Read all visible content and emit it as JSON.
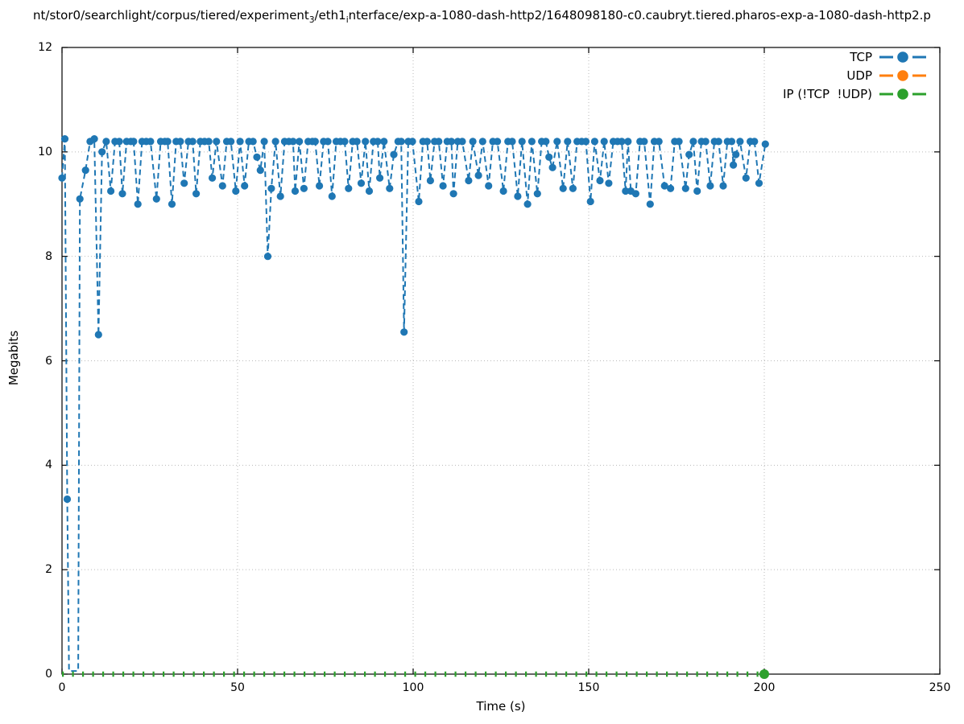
{
  "title": {
    "prefix": "nt/stor0/searchlight/corpus/tiered/experiment",
    "sub1": "3",
    "mid": "/eth1",
    "sub2": "i",
    "suffix": "nterface/exp-a-1080-dash-http2/1648098180-c0.caubryt.tiered.pharos-exp-a-1080-dash-http2.p"
  },
  "chart_data": {
    "type": "line",
    "xlabel": "Time (s)",
    "ylabel": "Megabits",
    "xlim": [
      0,
      250
    ],
    "ylim": [
      0,
      12
    ],
    "xticks": [
      0,
      50,
      100,
      150,
      200,
      250
    ],
    "yticks": [
      0,
      2,
      4,
      6,
      8,
      10,
      12
    ],
    "grid": true,
    "legend_position": "top-right-inside",
    "series": [
      {
        "name": "TCP",
        "color": "#1f77b4",
        "dash": "dashed",
        "marker": "circle",
        "marker_size": 4.6,
        "points": [
          [
            0,
            9.5
          ],
          [
            0.8,
            10.25
          ],
          [
            1.5,
            3.35
          ],
          [
            2,
            0.06,
            0
          ],
          [
            4.6,
            0.06,
            0
          ],
          [
            5.1,
            9.1
          ],
          [
            6.7,
            9.65
          ],
          [
            8,
            10.2
          ],
          [
            9.2,
            10.25
          ],
          [
            10.4,
            6.5
          ],
          [
            11.4,
            10.0
          ],
          [
            12.6,
            10.2
          ],
          [
            13.9,
            9.25
          ],
          [
            15.1,
            10.2
          ],
          [
            16.3,
            10.2
          ],
          [
            17.2,
            9.2
          ],
          [
            18.4,
            10.2
          ],
          [
            19.6,
            10.2
          ],
          [
            20.4,
            10.2
          ],
          [
            21.6,
            9.0
          ],
          [
            22.8,
            10.2
          ],
          [
            24,
            10.2
          ],
          [
            25.2,
            10.2
          ],
          [
            26.9,
            9.1
          ],
          [
            28.1,
            10.2
          ],
          [
            29.3,
            10.2
          ],
          [
            30.1,
            10.2
          ],
          [
            31.3,
            9.0
          ],
          [
            32.5,
            10.2
          ],
          [
            33.7,
            10.2
          ],
          [
            34.8,
            9.4
          ],
          [
            36,
            10.2
          ],
          [
            37.2,
            10.2
          ],
          [
            38.2,
            9.2
          ],
          [
            39.4,
            10.2
          ],
          [
            40.6,
            10.2
          ],
          [
            41.8,
            10.2
          ],
          [
            42.8,
            9.5
          ],
          [
            44,
            10.2
          ],
          [
            45.7,
            9.35
          ],
          [
            46.9,
            10.2
          ],
          [
            48.1,
            10.2
          ],
          [
            49.5,
            9.25
          ],
          [
            50.7,
            10.2
          ],
          [
            52,
            9.35
          ],
          [
            53.2,
            10.2
          ],
          [
            54.4,
            10.2
          ],
          [
            55.5,
            9.9
          ],
          [
            56.5,
            9.65
          ],
          [
            57.6,
            10.2
          ],
          [
            58.6,
            8.0
          ],
          [
            59.6,
            9.3
          ],
          [
            60.8,
            10.2
          ],
          [
            62.2,
            9.15
          ],
          [
            63.4,
            10.2
          ],
          [
            64.6,
            10.2
          ],
          [
            65.8,
            10.2
          ],
          [
            66.4,
            9.25
          ],
          [
            67.6,
            10.2
          ],
          [
            68.9,
            9.3
          ],
          [
            70.1,
            10.2
          ],
          [
            71.3,
            10.2
          ],
          [
            72.1,
            10.2
          ],
          [
            73.3,
            9.35
          ],
          [
            74.5,
            10.2
          ],
          [
            75.7,
            10.2
          ],
          [
            76.9,
            9.15
          ],
          [
            78.1,
            10.2
          ],
          [
            79.3,
            10.2
          ],
          [
            80.5,
            10.2
          ],
          [
            81.6,
            9.3
          ],
          [
            82.8,
            10.2
          ],
          [
            84,
            10.2
          ],
          [
            85.2,
            9.4
          ],
          [
            86.4,
            10.2
          ],
          [
            87.5,
            9.25
          ],
          [
            88.7,
            10.2
          ],
          [
            89.9,
            10.2
          ],
          [
            90.5,
            9.5
          ],
          [
            91.7,
            10.2
          ],
          [
            93.3,
            9.3
          ],
          [
            94.5,
            9.95
          ],
          [
            95.7,
            10.2
          ],
          [
            96.6,
            10.2
          ],
          [
            97.4,
            6.55
          ],
          [
            98.6,
            10.2
          ],
          [
            99.8,
            10.2
          ],
          [
            101.6,
            9.05
          ],
          [
            102.8,
            10.2
          ],
          [
            104,
            10.2
          ],
          [
            104.9,
            9.45
          ],
          [
            106.1,
            10.2
          ],
          [
            107.3,
            10.2
          ],
          [
            108.5,
            9.35
          ],
          [
            109.7,
            10.2
          ],
          [
            110.9,
            10.2
          ],
          [
            111.5,
            9.2
          ],
          [
            112.7,
            10.2
          ],
          [
            114,
            10.2
          ],
          [
            115.8,
            9.45
          ],
          [
            117,
            10.2
          ],
          [
            118.6,
            9.55
          ],
          [
            119.8,
            10.2
          ],
          [
            121.5,
            9.35
          ],
          [
            122.7,
            10.2
          ],
          [
            124,
            10.2
          ],
          [
            125.7,
            9.25
          ],
          [
            127,
            10.2
          ],
          [
            128.2,
            10.2
          ],
          [
            129.8,
            9.15
          ],
          [
            131,
            10.2
          ],
          [
            132.6,
            9.0
          ],
          [
            133.8,
            10.2
          ],
          [
            135.4,
            9.2
          ],
          [
            136.6,
            10.2
          ],
          [
            137.8,
            10.2
          ],
          [
            138.7,
            9.9
          ],
          [
            139.7,
            9.7
          ],
          [
            141,
            10.2
          ],
          [
            142.7,
            9.3
          ],
          [
            144,
            10.2
          ],
          [
            145.5,
            9.3
          ],
          [
            146.7,
            10.2
          ],
          [
            148,
            10.2
          ],
          [
            149.2,
            10.2
          ],
          [
            150.5,
            9.05
          ],
          [
            151.7,
            10.2
          ],
          [
            153.2,
            9.45
          ],
          [
            154.4,
            10.2
          ],
          [
            155.7,
            9.4
          ],
          [
            157,
            10.2
          ],
          [
            158.2,
            10.2
          ],
          [
            159.4,
            10.2
          ],
          [
            160.5,
            9.25
          ],
          [
            161.2,
            10.2
          ],
          [
            162,
            9.25
          ],
          [
            163.4,
            9.2
          ],
          [
            164.6,
            10.2
          ],
          [
            165.8,
            10.2
          ],
          [
            167.5,
            9.0
          ],
          [
            168.7,
            10.2
          ],
          [
            170,
            10.2
          ],
          [
            171.6,
            9.35
          ],
          [
            173.3,
            9.3
          ],
          [
            174.5,
            10.2
          ],
          [
            175.7,
            10.2
          ],
          [
            177.6,
            9.3
          ],
          [
            178.6,
            9.95
          ],
          [
            179.8,
            10.2
          ],
          [
            180.9,
            9.25
          ],
          [
            182.1,
            10.2
          ],
          [
            183.3,
            10.2
          ],
          [
            184.6,
            9.35
          ],
          [
            185.8,
            10.2
          ],
          [
            187,
            10.2
          ],
          [
            188.3,
            9.35
          ],
          [
            189.5,
            10.2
          ],
          [
            190.7,
            10.2
          ],
          [
            191.2,
            9.75
          ],
          [
            191.9,
            9.95
          ],
          [
            193.1,
            10.2
          ],
          [
            194.8,
            9.5
          ],
          [
            196,
            10.2
          ],
          [
            197.2,
            10.2
          ],
          [
            198.5,
            9.4
          ],
          [
            200.3,
            10.15
          ]
        ]
      },
      {
        "name": "UDP",
        "color": "#ff7f0e",
        "dash": "dashed",
        "marker": "circle",
        "marker_size": 4.6,
        "points": []
      },
      {
        "name": "IP (!TCP  !UDP)",
        "color": "#2ca02c",
        "dash": "tick",
        "marker": "circle",
        "marker_size": 6,
        "points": [
          [
            0,
            0,
            0
          ],
          [
            200,
            0,
            1
          ]
        ]
      }
    ]
  },
  "colors": {
    "axis": "#000000",
    "grid": "#b9b9b9",
    "background": "#ffffff",
    "tcp": "#1f77b4",
    "udp": "#ff7f0e",
    "ip": "#2ca02c"
  }
}
